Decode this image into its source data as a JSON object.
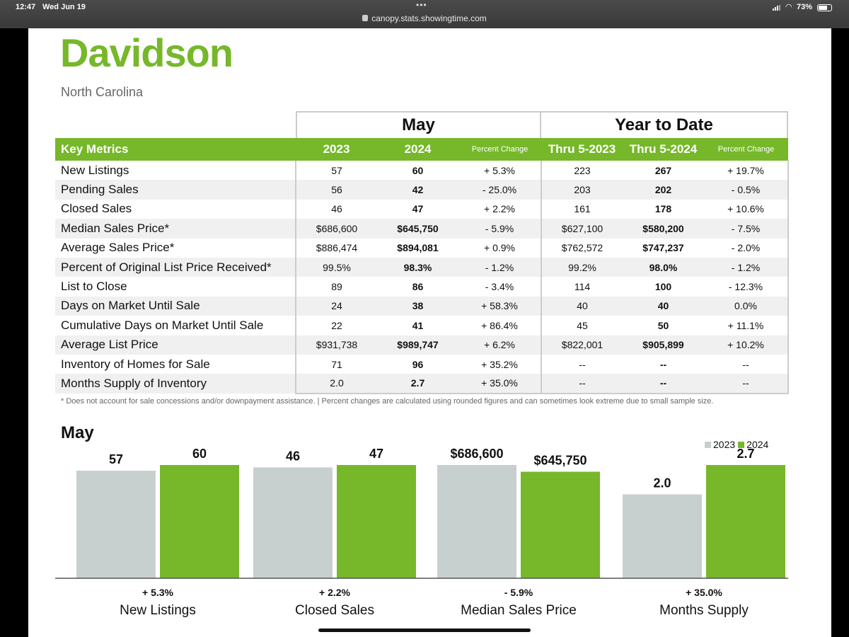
{
  "status_bar": {
    "time": "12:47",
    "date": "Wed Jun 19",
    "url": "canopy.stats.showingtime.com",
    "battery": "73%",
    "battery_level": 0.73
  },
  "page": {
    "title": "Davidson",
    "subtitle": "North Carolina",
    "period_may": "May",
    "period_ytd": "Year to Date",
    "footnote": "* Does not account for sale concessions and/or downpayment assistance.  |  Percent changes are calculated using rounded figures and can sometimes look extreme due to small sample size."
  },
  "table": {
    "headers": [
      "Key Metrics",
      "2023",
      "2024",
      "Percent Change",
      "Thru 5-2023",
      "Thru 5-2024",
      "Percent Change"
    ],
    "rows": [
      [
        "New Listings",
        "57",
        "60",
        "+ 5.3%",
        "223",
        "267",
        "+ 19.7%"
      ],
      [
        "Pending Sales",
        "56",
        "42",
        "- 25.0%",
        "203",
        "202",
        "- 0.5%"
      ],
      [
        "Closed Sales",
        "46",
        "47",
        "+ 2.2%",
        "161",
        "178",
        "+ 10.6%"
      ],
      [
        "Median Sales Price*",
        "$686,600",
        "$645,750",
        "- 5.9%",
        "$627,100",
        "$580,200",
        "- 7.5%"
      ],
      [
        "Average Sales Price*",
        "$886,474",
        "$894,081",
        "+ 0.9%",
        "$762,572",
        "$747,237",
        "- 2.0%"
      ],
      [
        "Percent of Original List Price Received*",
        "99.5%",
        "98.3%",
        "- 1.2%",
        "99.2%",
        "98.0%",
        "- 1.2%"
      ],
      [
        "List to Close",
        "89",
        "86",
        "- 3.4%",
        "114",
        "100",
        "- 12.3%"
      ],
      [
        "Days on Market Until Sale",
        "24",
        "38",
        "+ 58.3%",
        "40",
        "40",
        "0.0%"
      ],
      [
        "Cumulative Days on Market Until Sale",
        "22",
        "41",
        "+ 86.4%",
        "45",
        "50",
        "+ 11.1%"
      ],
      [
        "Average List Price",
        "$931,738",
        "$989,747",
        "+ 6.2%",
        "$822,001",
        "$905,899",
        "+ 10.2%"
      ],
      [
        "Inventory of Homes for Sale",
        "71",
        "96",
        "+ 35.2%",
        "--",
        "--",
        "--"
      ],
      [
        "Months Supply of Inventory",
        "2.0",
        "2.7",
        "+ 35.0%",
        "--",
        "--",
        "--"
      ]
    ]
  },
  "chart_data": {
    "type": "bar",
    "title": "May",
    "legend_position": "top-right",
    "colors": {
      "2023": "#c8d0cf",
      "2024": "#76b82a"
    },
    "series": [
      {
        "name": "2023",
        "values": [
          57,
          46,
          686600,
          2.0
        ],
        "labels": [
          "57",
          "46",
          "$686,600",
          "2.0"
        ]
      },
      {
        "name": "2024",
        "values": [
          60,
          47,
          645750,
          2.7
        ],
        "labels": [
          "60",
          "47",
          "$645,750",
          "2.7"
        ]
      }
    ],
    "groups": [
      {
        "name": "New Listings",
        "change": "+ 5.3%"
      },
      {
        "name": "Closed Sales",
        "change": "+ 2.2%"
      },
      {
        "name": "Median Sales Price",
        "change": "- 5.9%"
      },
      {
        "name": "Months Supply",
        "change": "+ 35.0%"
      }
    ]
  }
}
